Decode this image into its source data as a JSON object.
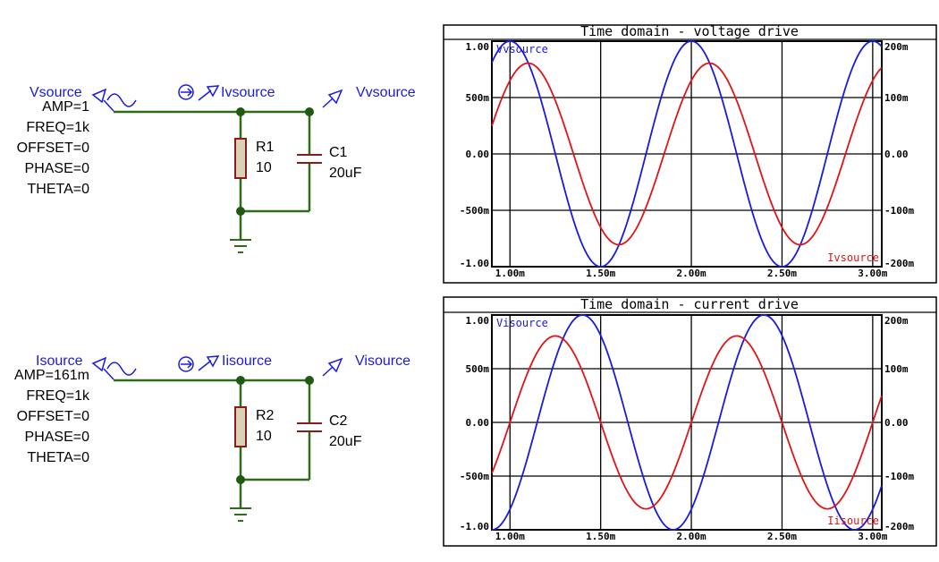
{
  "colors": {
    "wire": "#2e6b1a",
    "node": "#1f5a10",
    "resistor_fill": "#d9d2b5",
    "component": "#8b1a1a",
    "voltage_trace": "#1a1adf",
    "current_trace": "#e01414",
    "label_blue": "#1a1adf"
  },
  "circuits": [
    {
      "source_name": "Vsource",
      "params": [
        "AMP=1",
        "FREQ=1k",
        "OFFSET=0",
        "PHASE=0",
        "THETA=0"
      ],
      "current_probe": "Ivsource",
      "voltage_probe": "Vvsource",
      "resistor": {
        "name": "R1",
        "value": "10"
      },
      "capacitor": {
        "name": "C1",
        "value": "20uF"
      }
    },
    {
      "source_name": "Isource",
      "params": [
        "AMP=161m",
        "FREQ=1k",
        "OFFSET=0",
        "PHASE=0",
        "THETA=0"
      ],
      "current_probe": "Iisource",
      "voltage_probe": "Visource",
      "resistor": {
        "name": "R2",
        "value": "10"
      },
      "capacitor": {
        "name": "C2",
        "value": "20uF"
      }
    }
  ],
  "chart_data": [
    {
      "type": "line",
      "title": "Time domain - voltage drive",
      "x_ticks": [
        "1.00m",
        "1.50m",
        "2.00m",
        "2.50m",
        "3.00m"
      ],
      "xlim": [
        0.0009,
        0.00305
      ],
      "left_ticks": [
        "1.00",
        "500m",
        "0.00",
        "-500m",
        "-1.00"
      ],
      "left_ylim": [
        -1.0,
        1.0
      ],
      "right_ticks": [
        "200m",
        "100m",
        "0.00",
        "-100m",
        "-200m"
      ],
      "right_ylim": [
        -0.2,
        0.2
      ],
      "grid": true,
      "series": [
        {
          "name": "Vvsource",
          "axis": "left",
          "color": "#1a1adf",
          "amplitude": 1.0,
          "frequency_hz": 1000,
          "zero_crossing_rising_s": 0.00175,
          "label_position": "top-left"
        },
        {
          "name": "Ivsource",
          "axis": "right",
          "color": "#e01414",
          "amplitude": 0.161,
          "frequency_hz": 1000,
          "zero_crossing_rising_s": 0.00185,
          "label_position": "bottom-right"
        }
      ]
    },
    {
      "type": "line",
      "title": "Time domain - current drive",
      "x_ticks": [
        "1.00m",
        "1.50m",
        "2.00m",
        "2.50m",
        "3.00m"
      ],
      "xlim": [
        0.0009,
        0.00305
      ],
      "left_ticks": [
        "1.00",
        "500m",
        "0.00",
        "-500m",
        "-1.00"
      ],
      "left_ylim": [
        -1.0,
        1.0
      ],
      "right_ticks": [
        "200m",
        "100m",
        "0.00",
        "-100m",
        "-200m"
      ],
      "right_ylim": [
        -0.2,
        0.2
      ],
      "grid": true,
      "series": [
        {
          "name": "Visource",
          "axis": "left",
          "color": "#1a1adf",
          "amplitude": 1.0,
          "frequency_hz": 1000,
          "zero_crossing_rising_s": 0.00215,
          "label_position": "top-left"
        },
        {
          "name": "Iisource",
          "axis": "right",
          "color": "#e01414",
          "amplitude": 0.161,
          "frequency_hz": 1000,
          "zero_crossing_rising_s": 0.002,
          "label_position": "bottom-right"
        }
      ]
    }
  ]
}
